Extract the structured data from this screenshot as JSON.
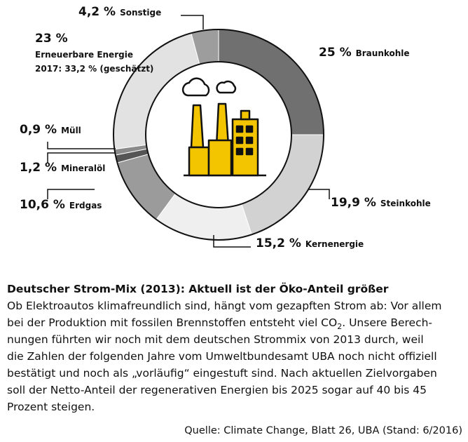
{
  "chart_data": {
    "type": "donut",
    "categories": [
      "Braunkohle",
      "Steinkohle",
      "Kernenergie",
      "Erdgas",
      "Mineralöl",
      "Müll",
      "Erneuerbare Energie",
      "Sonstige"
    ],
    "values": [
      25,
      19.9,
      15.2,
      10.6,
      1.2,
      0.9,
      23,
      4.2
    ],
    "value_labels": [
      "25 %",
      "19,9 %",
      "15,2 %",
      "10,6 %",
      "1,2 %",
      "0,9 %",
      "23 %",
      "4,2 %"
    ],
    "colors": [
      "#707070",
      "#d2d2d2",
      "#efefef",
      "#9b9b9b",
      "#555555",
      "#8a8a8a",
      "#e2e2e2",
      "#9d9d9d"
    ],
    "annotation": "2017: 33,2 % (geschätzt)"
  },
  "caption": {
    "title": "Deutscher Strom-Mix (2013): Aktuell ist der Öko-Anteil größer",
    "lines": [
      [
        "Ob Elektroautos klimafreundlich sind, hängt vom gezapften Strom ab: Vor allem"
      ],
      [
        "bei der Produktion mit fossilen Brennstoffen entsteht viel CO",
        "2",
        ". Unsere Berech-"
      ],
      [
        "nungen führten wir noch mit dem deutschen Strommix von 2013 durch, weil"
      ],
      [
        "die Zahlen der folgenden Jahre vom Umweltbundesamt UBA noch nicht offiziell"
      ],
      [
        "bestätigt und noch als „vorläufig“ eingestuft sind. Nach aktuellen Zielvorgaben"
      ],
      [
        "soll der Netto-Anteil der regenerativen Energien bis 2025 sogar auf 40 bis 45"
      ],
      [
        "Prozent steigen."
      ]
    ],
    "source": "Quelle: Climate Change, Blatt 26, UBA (Stand: 6/2016)"
  }
}
